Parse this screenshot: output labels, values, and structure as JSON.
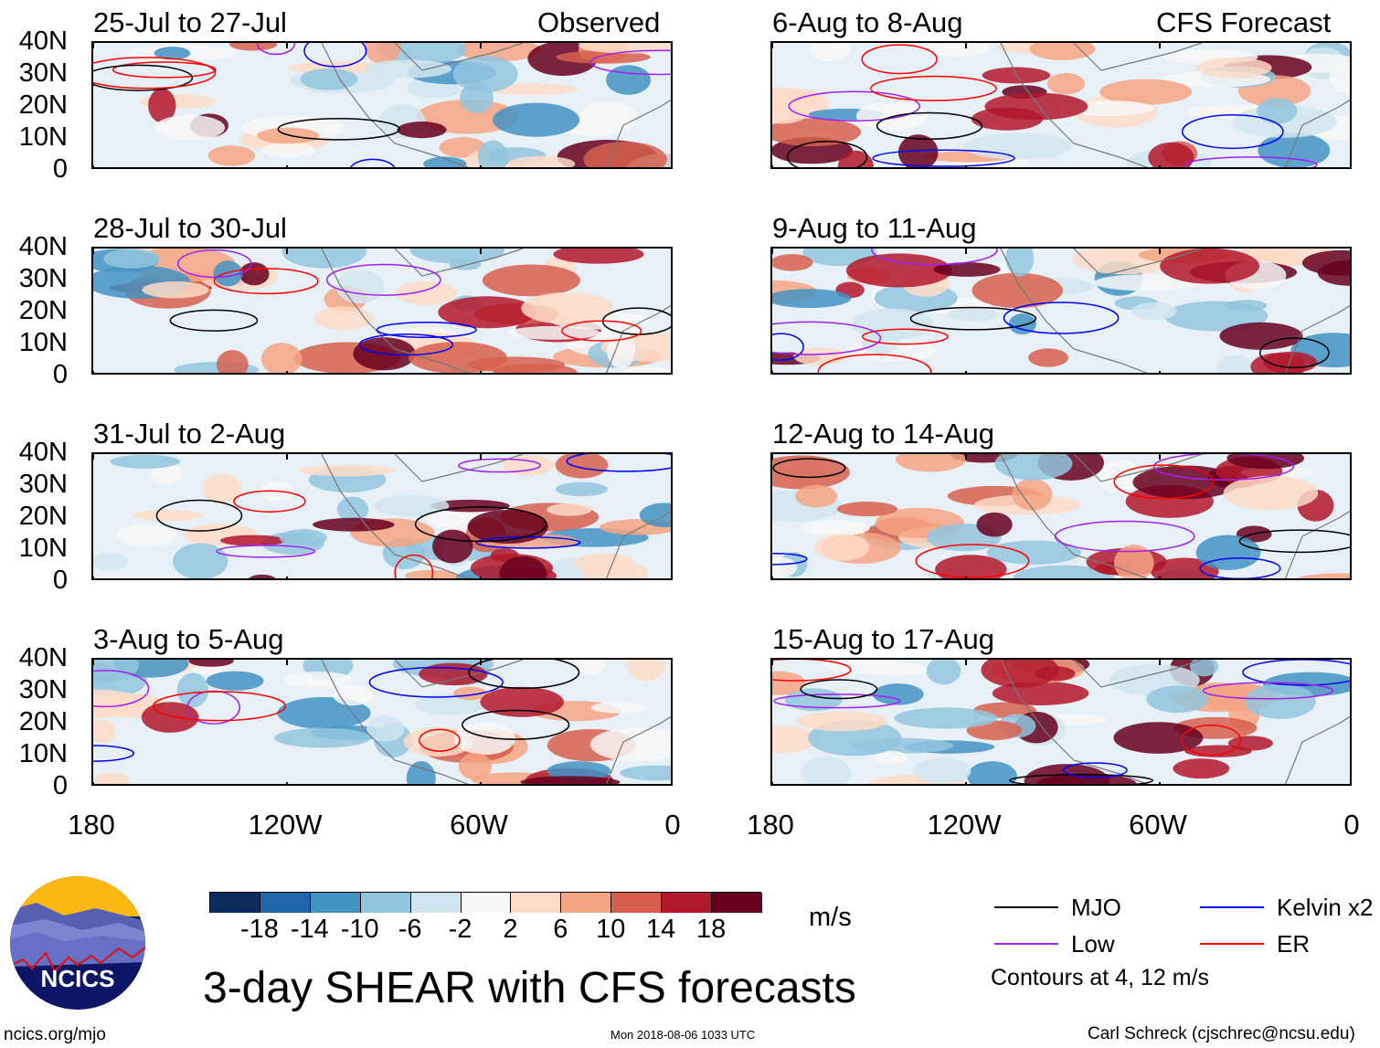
{
  "left_header": "Observed",
  "right_header": "CFS Forecast",
  "panels_left": [
    {
      "title": "25-Jul to 27-Jul"
    },
    {
      "title": "28-Jul to 30-Jul"
    },
    {
      "title": "31-Jul to 2-Aug"
    },
    {
      "title": "3-Aug to 5-Aug"
    }
  ],
  "panels_right": [
    {
      "title": "6-Aug to 8-Aug"
    },
    {
      "title": "9-Aug to 11-Aug"
    },
    {
      "title": "12-Aug to 14-Aug"
    },
    {
      "title": "15-Aug to 17-Aug"
    }
  ],
  "y_ticks": [
    "40N",
    "30N",
    "20N",
    "10N",
    "0"
  ],
  "x_ticks": [
    "180",
    "120W",
    "60W",
    "0"
  ],
  "colorbar": {
    "colors": [
      "#0d2c5e",
      "#2166ac",
      "#4393c3",
      "#92c5de",
      "#d1e5f0",
      "#f7f7f7",
      "#fddbc7",
      "#f4a582",
      "#d6604d",
      "#b2182b",
      "#67001f"
    ],
    "labels": [
      "-18",
      "-14",
      "-10",
      "-6",
      "-2",
      "2",
      "6",
      "10",
      "14",
      "18"
    ],
    "units": "m/s"
  },
  "title": "3-day SHEAR with CFS forecasts",
  "logo_text": "NCICS",
  "legend": {
    "items": [
      {
        "label": "MJO",
        "color": "#000000"
      },
      {
        "label": "Kelvin x2",
        "color": "#0000ff"
      },
      {
        "label": "Low",
        "color": "#a020f0"
      },
      {
        "label": "ER",
        "color": "#ff0000"
      }
    ],
    "note": "Contours at 4, 12 m/s"
  },
  "footer": {
    "url": "ncics.org/mjo",
    "timestamp": "Mon 2018-08-06 1033 UTC",
    "author": "Carl Schreck (cjschrec@ncsu.edu)"
  }
}
